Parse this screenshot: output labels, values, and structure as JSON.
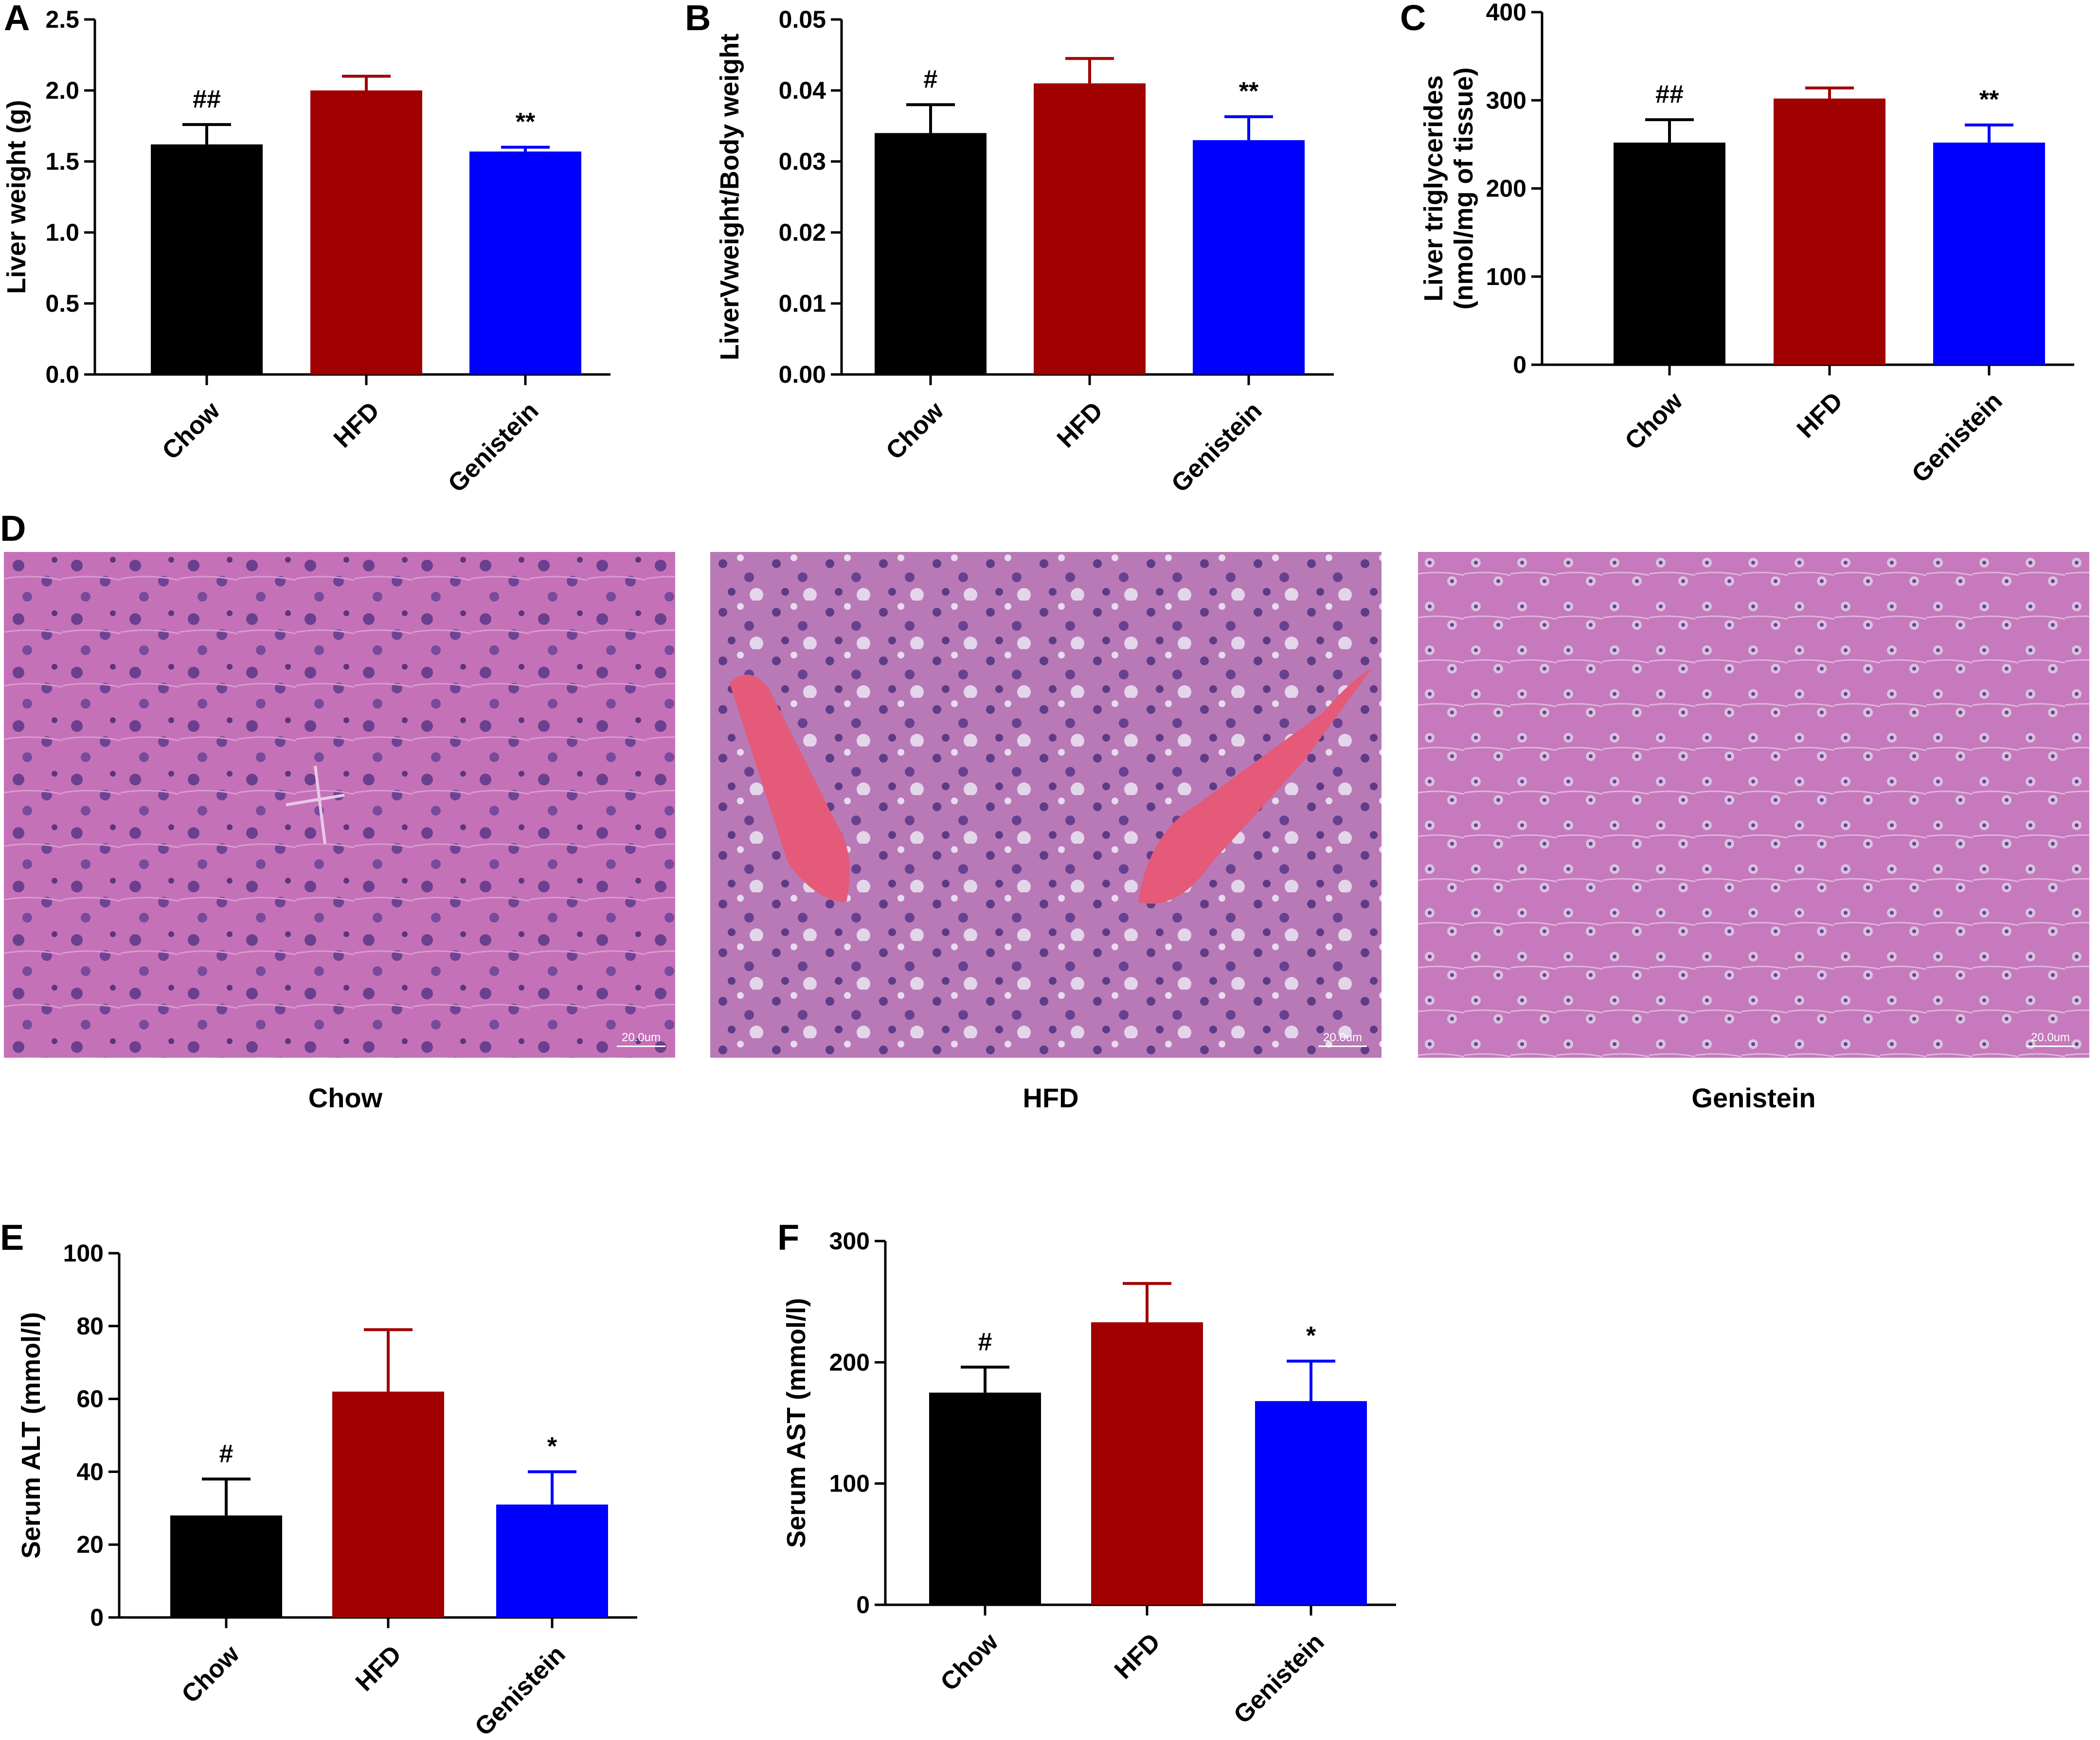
{
  "panels": {
    "A": {
      "letter": "A"
    },
    "B": {
      "letter": "B"
    },
    "C": {
      "letter": "C"
    },
    "D": {
      "letter": "D"
    },
    "E": {
      "letter": "E"
    },
    "F": {
      "letter": "F"
    }
  },
  "colors": {
    "Chow": "#000000",
    "HFD": "#a00000",
    "Genistein": "#0000ff"
  },
  "chart_data": [
    {
      "id": "A",
      "type": "bar",
      "title": "",
      "ylabel": "Liver weight (g)",
      "categories": [
        "Chow",
        "HFD",
        "Genistein"
      ],
      "values": [
        1.62,
        2.0,
        1.57
      ],
      "errors": [
        0.14,
        0.1,
        0.03
      ],
      "annotations": [
        "##",
        "",
        "**"
      ],
      "ylim": [
        0,
        2.5
      ],
      "yticks": [
        "0.0",
        "0.5",
        "1.0",
        "1.5",
        "2.0",
        "2.5"
      ],
      "grid": false,
      "legend": "none"
    },
    {
      "id": "B",
      "type": "bar",
      "title": "",
      "ylabel": "LiverVweight/Body weight",
      "categories": [
        "Chow",
        "HFD",
        "Genistein"
      ],
      "values": [
        0.034,
        0.041,
        0.033
      ],
      "errors": [
        0.004,
        0.0035,
        0.0033
      ],
      "annotations": [
        "#",
        "",
        "**"
      ],
      "ylim": [
        0,
        0.05
      ],
      "yticks": [
        "0.00",
        "0.01",
        "0.02",
        "0.03",
        "0.04",
        "0.05"
      ],
      "grid": false,
      "legend": "none"
    },
    {
      "id": "C",
      "type": "bar",
      "title": "",
      "ylabel": [
        "Liver triglycerides",
        "(nmol/mg of tissue)"
      ],
      "categories": [
        "Chow",
        "HFD",
        "Genistein"
      ],
      "values": [
        252,
        302,
        252
      ],
      "errors": [
        26,
        12,
        20
      ],
      "annotations": [
        "##",
        "",
        "**"
      ],
      "ylim": [
        0,
        400
      ],
      "yticks": [
        "0",
        "100",
        "200",
        "300",
        "400"
      ],
      "grid": false,
      "legend": "none"
    },
    {
      "id": "E",
      "type": "bar",
      "title": "",
      "ylabel": "Serum ALT (mmol/l)",
      "categories": [
        "Chow",
        "HFD",
        "Genistein"
      ],
      "values": [
        28,
        62,
        31
      ],
      "errors": [
        10,
        17,
        9
      ],
      "annotations": [
        "#",
        "",
        "*"
      ],
      "ylim": [
        0,
        100
      ],
      "yticks": [
        "0",
        "20",
        "40",
        "60",
        "80",
        "100"
      ],
      "grid": false,
      "legend": "none"
    },
    {
      "id": "F",
      "type": "bar",
      "title": "",
      "ylabel": "Serum AST (mmol/l)",
      "categories": [
        "Chow",
        "HFD",
        "Genistein"
      ],
      "values": [
        175,
        233,
        168
      ],
      "errors": [
        21,
        32,
        33
      ],
      "annotations": [
        "#",
        "",
        "*"
      ],
      "ylim": [
        0,
        300
      ],
      "yticks": [
        "0",
        "100",
        "200",
        "300"
      ],
      "grid": false,
      "legend": "none"
    }
  ],
  "histology": {
    "images": [
      {
        "caption": "Chow",
        "scale": "20.0um"
      },
      {
        "caption": "HFD",
        "scale": "20.0um"
      },
      {
        "caption": "Genistein",
        "scale": "20.0um"
      }
    ]
  }
}
